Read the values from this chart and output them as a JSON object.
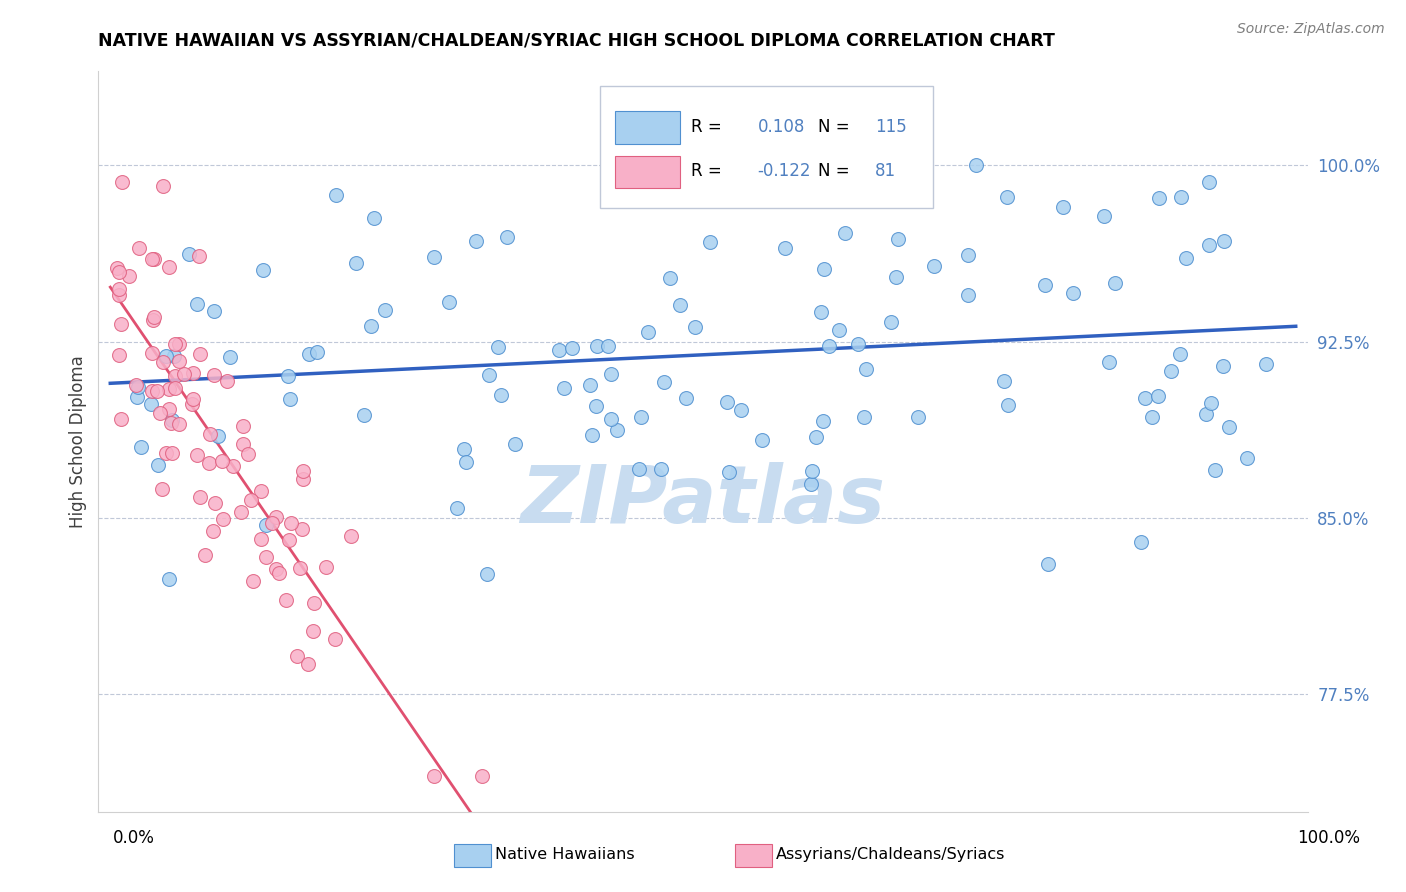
{
  "title": "NATIVE HAWAIIAN VS ASSYRIAN/CHALDEAN/SYRIAC HIGH SCHOOL DIPLOMA CORRELATION CHART",
  "source_text": "Source: ZipAtlas.com",
  "ylabel": "High School Diploma",
  "ytick_labels": [
    "77.5%",
    "85.0%",
    "92.5%",
    "100.0%"
  ],
  "ytick_values": [
    0.775,
    0.85,
    0.925,
    1.0
  ],
  "legend_label1": "Native Hawaiians",
  "legend_label2": "Assyrians/Chaldeans/Syriacs",
  "R1": 0.108,
  "N1": 115,
  "R2": -0.122,
  "N2": 81,
  "color_blue": "#A8D0F0",
  "color_blue_edge": "#5090D0",
  "color_pink": "#F8B0C8",
  "color_pink_edge": "#E06080",
  "trendline_blue": "#3060C0",
  "trendline_pink_solid": "#E05070",
  "trendline_pink_dash": "#F0A0B8",
  "watermark_color": "#C8DCF0",
  "background_color": "#FFFFFF",
  "tick_color": "#5080C0",
  "grid_color": "#C0C8D8"
}
